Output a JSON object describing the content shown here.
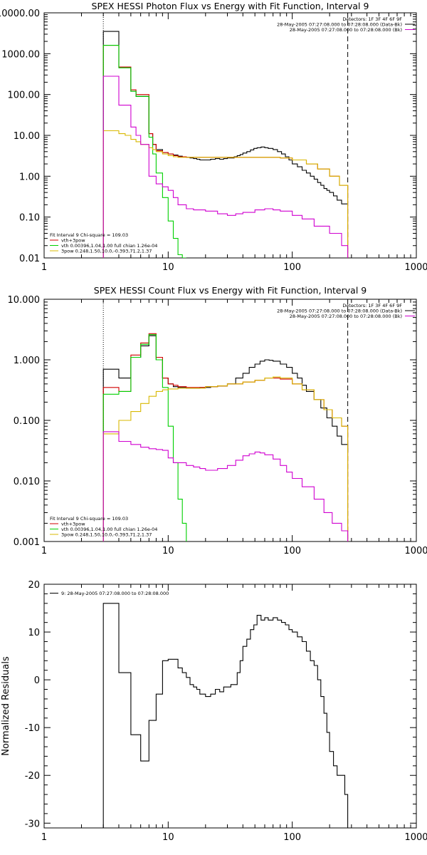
{
  "colors": {
    "data": "#000000",
    "total": "#d00000",
    "thermal": "#00d000",
    "powerlaw": "#d8b800",
    "background": "#d000d0"
  },
  "chart_data": [
    {
      "type": "line",
      "title": "SPEX HESSI Photon Flux vs Energy with Fit Function, Interval 9",
      "xscale": "log",
      "yscale": "log",
      "xlim": [
        1,
        1000
      ],
      "ylim": [
        0.01,
        10000
      ],
      "x_ticks": [
        "1",
        "10",
        "100",
        "1000"
      ],
      "y_ticks": [
        "0.01",
        "0.10",
        "1.00",
        "10.00",
        "100.00",
        "1000.00",
        "10000.00"
      ],
      "y_tick_values": [
        0.01,
        0.1,
        1,
        10,
        100,
        1000,
        10000
      ],
      "legend_topright": [
        {
          "text": "Detectors: 1F 3F 4F 6F 9F",
          "color": null
        },
        {
          "text": "28-May-2005 07:27:08.000 to 07:28:08.000 (Data-Bk)",
          "color": "data"
        },
        {
          "text": "28-May-2005 07:27:08.000 to 07:28:08.000 (Bk)",
          "color": "background"
        }
      ],
      "legend_bottomleft": [
        {
          "text": "Fit Interval 9    Chi-square = 109.03",
          "color": null
        },
        {
          "text": "vth+3pow",
          "color": "total"
        },
        {
          "text": "vth 0.00396,1.04,1.00   full chian 1.26e-04",
          "color": "thermal"
        },
        {
          "text": "3pow 0.248,1.50,10.0,-0.393,71.2,1.37",
          "color": "powerlaw"
        }
      ],
      "vlines": [
        {
          "x": 3,
          "style": "dotted"
        },
        {
          "x": 280,
          "style": "dashed"
        }
      ],
      "series": [
        {
          "color": "data",
          "x": [
            3,
            3.5,
            4,
            4.5,
            5,
            5.5,
            6,
            7,
            7.5,
            8,
            9,
            10,
            11,
            12,
            13,
            14,
            15,
            16,
            17,
            18,
            20,
            22,
            24,
            26,
            28,
            30,
            32,
            34,
            36,
            38,
            40,
            43,
            46,
            49,
            52,
            56,
            60,
            64,
            70,
            76,
            82,
            88,
            94,
            100,
            110,
            120,
            130,
            140,
            150,
            160,
            170,
            180,
            190,
            200,
            215,
            230,
            250,
            265,
            280
          ],
          "y": [
            3500,
            3500,
            460,
            460,
            120,
            90,
            90,
            11,
            6,
            4.5,
            3.8,
            3.5,
            3.3,
            3.1,
            3.0,
            2.9,
            2.8,
            2.7,
            2.6,
            2.5,
            2.5,
            2.6,
            2.7,
            2.6,
            2.7,
            2.8,
            2.8,
            3.0,
            3.2,
            3.4,
            3.7,
            4.0,
            4.4,
            4.8,
            5.0,
            5.2,
            5.0,
            4.8,
            4.5,
            4.0,
            3.5,
            3.0,
            2.5,
            2.0,
            1.7,
            1.4,
            1.2,
            1.0,
            0.85,
            0.7,
            0.6,
            0.5,
            0.45,
            0.4,
            0.33,
            0.26,
            0.21,
            0.21,
            0.21
          ]
        },
        {
          "color": "total",
          "x": [
            3,
            3.5,
            4,
            4.5,
            5,
            5.5,
            6,
            7,
            7.5,
            8,
            9,
            10,
            11,
            12,
            14,
            16,
            20,
            25,
            30,
            40,
            50,
            60,
            80,
            100,
            130,
            160,
            200,
            240,
            280
          ],
          "y": [
            1600,
            1600,
            470,
            470,
            130,
            100,
            100,
            11,
            6,
            4.2,
            3.8,
            3.5,
            3.2,
            3.0,
            2.9,
            2.9,
            2.9,
            2.9,
            2.9,
            2.9,
            2.9,
            2.9,
            2.8,
            2.5,
            2.0,
            1.5,
            1.0,
            0.6,
            0.4
          ]
        },
        {
          "color": "thermal",
          "x": [
            3,
            3.5,
            4,
            4.5,
            5,
            5.5,
            6,
            7,
            7.5,
            8,
            9,
            10,
            11,
            12,
            13,
            14
          ],
          "y": [
            1600,
            1600,
            450,
            450,
            120,
            90,
            90,
            9,
            3.5,
            1.2,
            0.3,
            0.08,
            0.03,
            0.012,
            0.01,
            0.01
          ]
        },
        {
          "color": "powerlaw",
          "x": [
            3,
            3.5,
            4,
            4.5,
            5,
            5.5,
            6,
            7,
            7.5,
            8,
            9,
            10,
            11,
            12,
            14,
            16,
            20,
            25,
            30,
            40,
            50,
            60,
            80,
            100,
            130,
            160,
            200,
            240,
            280
          ],
          "y": [
            13,
            13,
            11,
            10,
            8,
            7,
            6,
            5,
            4.5,
            4,
            3.5,
            3.2,
            3.0,
            2.9,
            2.9,
            2.9,
            2.9,
            2.9,
            2.9,
            2.9,
            2.9,
            2.9,
            2.8,
            2.5,
            2.0,
            1.5,
            1.0,
            0.6,
            0.4
          ]
        },
        {
          "color": "background",
          "x": [
            3,
            3.5,
            4,
            4.5,
            5,
            5.5,
            6,
            7,
            8,
            9,
            10,
            11,
            12,
            14,
            16,
            20,
            25,
            30,
            35,
            40,
            50,
            60,
            70,
            80,
            100,
            120,
            150,
            200,
            250,
            280
          ],
          "y": [
            280,
            280,
            55,
            55,
            16,
            10,
            6,
            1.0,
            0.65,
            0.55,
            0.45,
            0.3,
            0.2,
            0.16,
            0.15,
            0.14,
            0.12,
            0.11,
            0.12,
            0.13,
            0.15,
            0.16,
            0.15,
            0.14,
            0.11,
            0.09,
            0.06,
            0.04,
            0.02,
            0.01
          ]
        }
      ]
    },
    {
      "type": "line",
      "title": "SPEX HESSI Count Flux vs Energy with Fit Function, Interval 9",
      "xscale": "log",
      "yscale": "log",
      "xlim": [
        1,
        1000
      ],
      "ylim": [
        0.001,
        10
      ],
      "x_ticks": [
        "1",
        "10",
        "100",
        "1000"
      ],
      "y_ticks": [
        "0.001",
        "0.010",
        "0.100",
        "1.000",
        "10.000"
      ],
      "y_tick_values": [
        0.001,
        0.01,
        0.1,
        1,
        10
      ],
      "legend_topright": [
        {
          "text": "Detectors: 1F 3F 4F 6F 9F",
          "color": null
        },
        {
          "text": "28-May-2005 07:27:08.000 to 07:28:08.000 (Data-Bk)",
          "color": "data"
        },
        {
          "text": "28-May-2005 07:27:08.000 to 07:28:08.000 (Bk)",
          "color": "background"
        }
      ],
      "legend_bottomleft": [
        {
          "text": "Fit Interval 9    Chi-square = 109.03",
          "color": null
        },
        {
          "text": "vth+3pow",
          "color": "total"
        },
        {
          "text": "vth 0.00396,1.04,1.00   full chian 1.26e-04",
          "color": "thermal"
        },
        {
          "text": "3pow 0.248,1.50,10.0,-0.393,71.2,1.37",
          "color": "powerlaw"
        }
      ],
      "vlines": [
        {
          "x": 3,
          "style": "dotted"
        },
        {
          "x": 280,
          "style": "dashed"
        }
      ],
      "series": [
        {
          "color": "data",
          "x": [
            3,
            4,
            5,
            6,
            7,
            8,
            9,
            10,
            11,
            12,
            14,
            16,
            18,
            20,
            22,
            25,
            30,
            35,
            40,
            45,
            50,
            55,
            60,
            65,
            70,
            80,
            90,
            100,
            110,
            120,
            130,
            150,
            170,
            190,
            210,
            230,
            250,
            280
          ],
          "y": [
            0.7,
            0.5,
            1.1,
            1.7,
            2.5,
            1.0,
            0.5,
            0.4,
            0.36,
            0.35,
            0.34,
            0.34,
            0.35,
            0.35,
            0.36,
            0.37,
            0.4,
            0.5,
            0.6,
            0.75,
            0.85,
            0.95,
            1.0,
            0.98,
            0.95,
            0.85,
            0.75,
            0.6,
            0.5,
            0.38,
            0.3,
            0.22,
            0.16,
            0.11,
            0.08,
            0.055,
            0.04,
            0.03
          ]
        },
        {
          "color": "total",
          "x": [
            3,
            4,
            5,
            6,
            7,
            8,
            9,
            10,
            11,
            12,
            14,
            16,
            20,
            25,
            30,
            40,
            50,
            60,
            70,
            80,
            100,
            120,
            150,
            180,
            210,
            250,
            280
          ],
          "y": [
            0.35,
            0.3,
            1.2,
            1.9,
            2.7,
            1.1,
            0.5,
            0.4,
            0.38,
            0.36,
            0.35,
            0.35,
            0.36,
            0.37,
            0.4,
            0.43,
            0.46,
            0.5,
            0.5,
            0.48,
            0.4,
            0.32,
            0.22,
            0.15,
            0.11,
            0.08,
            0.07
          ]
        },
        {
          "color": "thermal",
          "x": [
            3,
            4,
            5,
            6,
            7,
            8,
            9,
            10,
            11,
            12,
            13,
            14
          ],
          "y": [
            0.27,
            0.3,
            1.1,
            1.8,
            2.6,
            1.0,
            0.35,
            0.08,
            0.02,
            0.005,
            0.002,
            0.001
          ]
        },
        {
          "color": "powerlaw",
          "x": [
            3,
            4,
            5,
            6,
            7,
            8,
            9,
            10,
            11,
            12,
            14,
            16,
            20,
            25,
            30,
            40,
            50,
            60,
            70,
            80,
            100,
            120,
            150,
            180,
            210,
            250,
            280
          ],
          "y": [
            0.06,
            0.1,
            0.14,
            0.19,
            0.25,
            0.3,
            0.32,
            0.33,
            0.33,
            0.34,
            0.34,
            0.34,
            0.36,
            0.37,
            0.4,
            0.43,
            0.46,
            0.5,
            0.52,
            0.5,
            0.4,
            0.32,
            0.22,
            0.15,
            0.11,
            0.08,
            0.065
          ]
        },
        {
          "color": "background",
          "x": [
            3,
            4,
            5,
            6,
            7,
            8,
            9,
            10,
            11,
            12,
            14,
            16,
            18,
            20,
            22,
            25,
            30,
            35,
            40,
            45,
            50,
            55,
            60,
            70,
            80,
            90,
            100,
            120,
            150,
            180,
            210,
            250,
            280
          ],
          "y": [
            0.065,
            0.045,
            0.04,
            0.036,
            0.034,
            0.033,
            0.032,
            0.024,
            0.02,
            0.02,
            0.018,
            0.017,
            0.016,
            0.015,
            0.015,
            0.016,
            0.018,
            0.022,
            0.026,
            0.028,
            0.03,
            0.029,
            0.027,
            0.023,
            0.018,
            0.014,
            0.011,
            0.008,
            0.005,
            0.003,
            0.002,
            0.0015,
            0.001
          ]
        }
      ]
    },
    {
      "type": "line",
      "title": "",
      "xscale": "log",
      "yscale": "linear",
      "xlim": [
        1,
        1000
      ],
      "ylim": [
        -31,
        20
      ],
      "ylabel": "Normalized Residuals",
      "x_ticks": [
        "1",
        "10",
        "100",
        "1000"
      ],
      "y_ticks": [
        "20",
        "10",
        "0",
        "-10",
        "-20",
        "-30"
      ],
      "y_tick_values": [
        20,
        10,
        0,
        -10,
        -20,
        -30
      ],
      "legend_topleft": [
        {
          "text": "9: 28-May-2005 07:27:08.000 to 07:28:08.000",
          "color": "data"
        }
      ],
      "series": [
        {
          "color": "data",
          "x": [
            3,
            4,
            5,
            6,
            7,
            8,
            9,
            10,
            11,
            12,
            13,
            14,
            15,
            16,
            17,
            18,
            20,
            22,
            24,
            26,
            28,
            30,
            32,
            34,
            36,
            38,
            40,
            43,
            46,
            49,
            52,
            56,
            60,
            64,
            70,
            76,
            82,
            88,
            94,
            100,
            110,
            120,
            130,
            140,
            150,
            160,
            170,
            180,
            190,
            200,
            215,
            230,
            250,
            265,
            280
          ],
          "y": [
            16,
            1.5,
            -11.5,
            -17,
            -8.5,
            -3,
            4,
            4.3,
            4.3,
            2.5,
            1.5,
            0.5,
            -1,
            -1.5,
            -2,
            -3,
            -3.5,
            -3,
            -2,
            -2.5,
            -1.5,
            -1.5,
            -1,
            -1,
            1.5,
            4,
            7,
            8.5,
            10.5,
            11.5,
            13.5,
            12.5,
            13,
            12.5,
            13,
            12.5,
            12,
            11.5,
            10.5,
            10,
            9,
            8,
            6,
            4,
            3,
            0,
            -3.5,
            -7,
            -11,
            -15,
            -18,
            -20,
            -20,
            -24,
            -31
          ]
        }
      ]
    }
  ]
}
